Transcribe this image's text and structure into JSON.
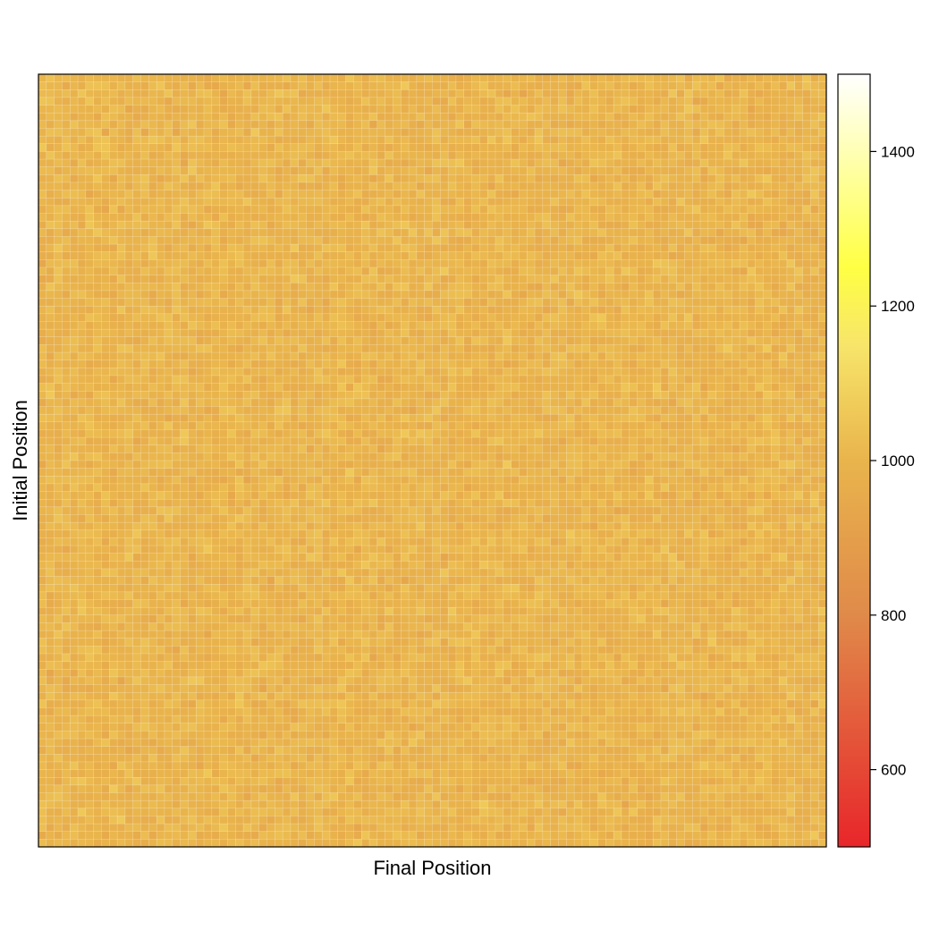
{
  "chart_data": {
    "type": "heatmap",
    "title": "",
    "xlabel": "Final Position",
    "ylabel": "Initial Position",
    "x_ticks_shown": false,
    "y_ticks_shown": false,
    "grid": false,
    "rows": 100,
    "cols": 100,
    "value_distribution": {
      "description": "Near-uniform values, approximately 1000 everywhere with random cell-to-cell noise",
      "approx_min": 930,
      "approx_max": 1070,
      "approx_mean": 1000
    },
    "colorbar": {
      "placement": "right",
      "range": [
        500,
        1500
      ],
      "ticks": [
        600,
        800,
        1000,
        1200,
        1400
      ],
      "tick_labels": [
        "600",
        "800",
        "1000",
        "1200",
        "1400"
      ],
      "colors": {
        "low": "#e8262a",
        "mid_low": "#e08a4a",
        "mid": "#e9b44c",
        "mid_high": "#f7e56a",
        "high_yellow": "#ffff44",
        "top": "#ffffff"
      }
    }
  }
}
